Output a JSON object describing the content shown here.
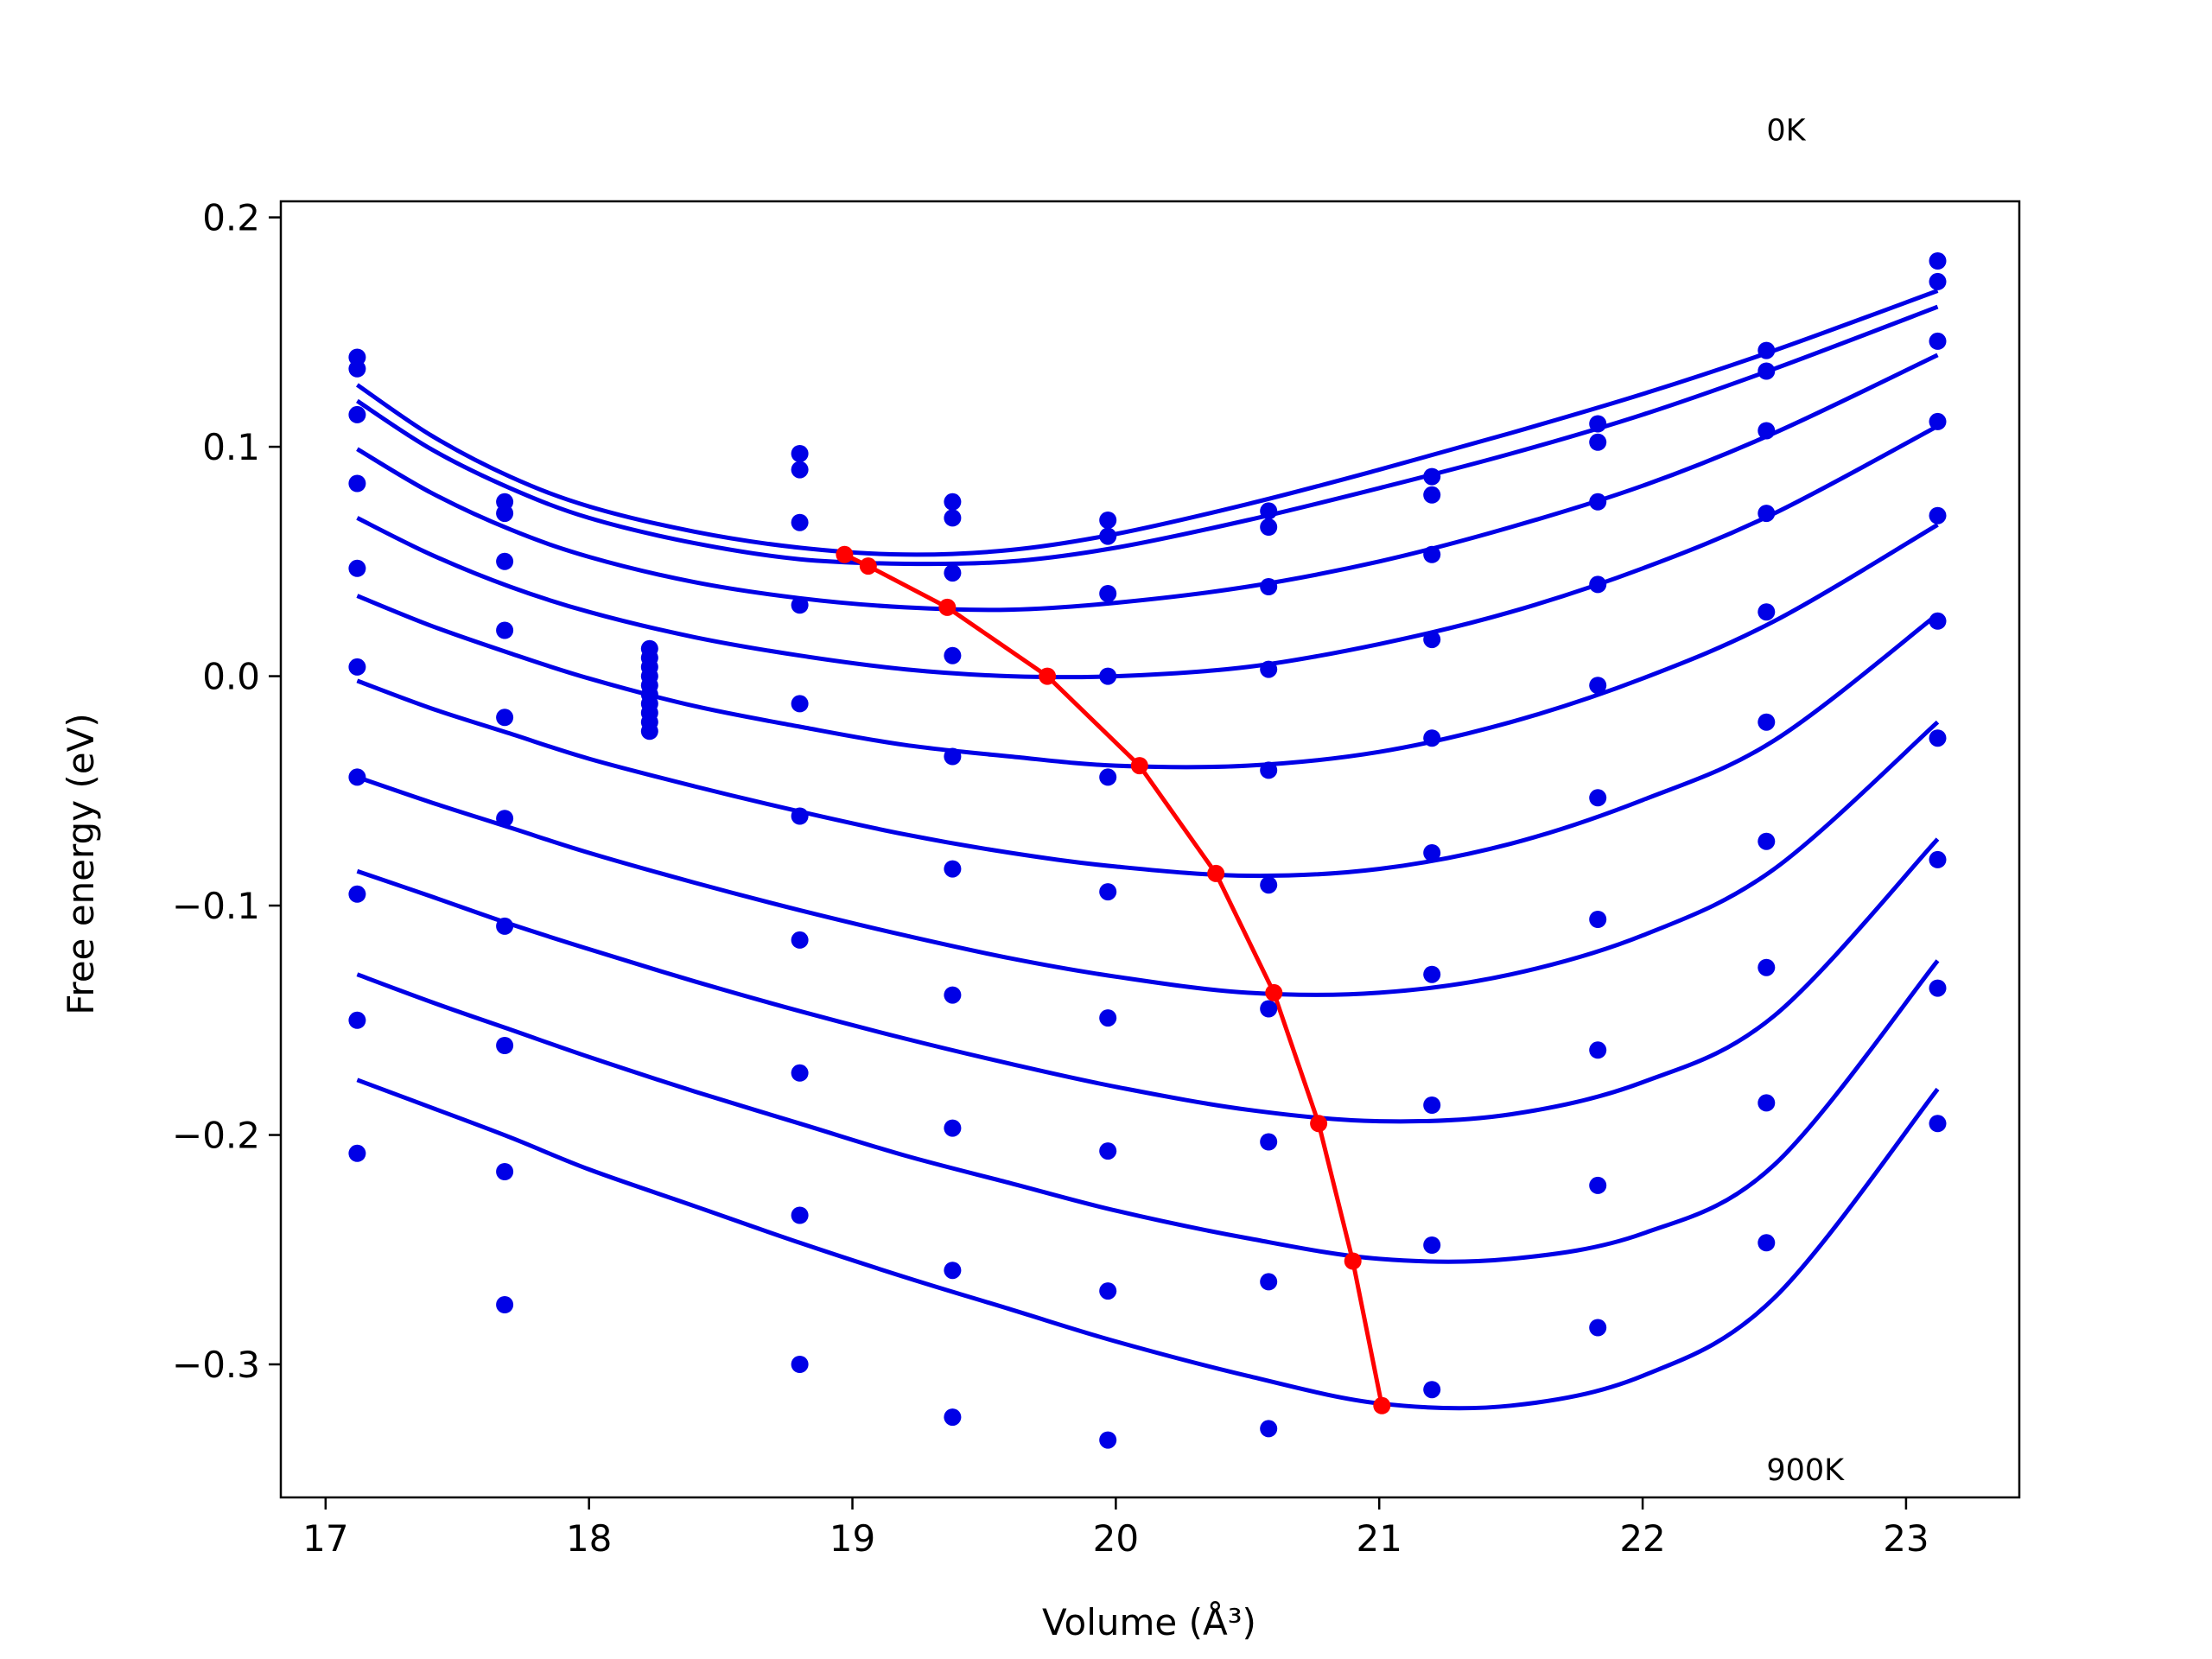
{
  "chart_data": {
    "type": "scatter",
    "xlabel": "Volume (Å³)",
    "ylabel": "Free energy (eV)",
    "xlim": [
      16.83,
      23.43
    ],
    "ylim": [
      -0.358,
      0.207
    ],
    "xticks": [
      17,
      18,
      19,
      20,
      21,
      22,
      23
    ],
    "yticks": [
      0.2,
      0.1,
      0.0,
      -0.1,
      -0.2,
      -0.3
    ],
    "ytick_labels": [
      "0.2",
      "0.1",
      "0.0",
      "−0.1",
      "−0.2",
      "−0.3"
    ],
    "grid": false,
    "colors": {
      "curves": "#0000e6",
      "points": "#0000e6",
      "minima": "#ff0000"
    },
    "annotations": [
      {
        "text": "0K",
        "x": 22.47,
        "y": 0.238
      },
      {
        "text": "900K",
        "x": 22.47,
        "y": -0.346
      }
    ],
    "x_volumes": [
      17.12,
      17.68,
      18.23,
      18.8,
      19.38,
      19.97,
      20.58,
      21.2,
      21.83,
      22.47,
      23.12
    ],
    "scatter_points": [
      [
        17.12,
        0.139
      ],
      [
        17.12,
        0.134
      ],
      [
        17.12,
        0.114
      ],
      [
        17.12,
        0.084
      ],
      [
        17.12,
        0.047
      ],
      [
        17.12,
        0.004
      ],
      [
        17.12,
        -0.044
      ],
      [
        17.12,
        -0.095
      ],
      [
        17.12,
        -0.15
      ],
      [
        17.12,
        -0.208
      ],
      [
        17.68,
        0.076
      ],
      [
        17.68,
        0.071
      ],
      [
        17.68,
        0.05
      ],
      [
        17.68,
        0.02
      ],
      [
        17.68,
        -0.018
      ],
      [
        17.68,
        -0.062
      ],
      [
        17.68,
        -0.109
      ],
      [
        17.68,
        -0.161
      ],
      [
        17.68,
        -0.216
      ],
      [
        17.68,
        -0.274
      ],
      [
        18.23,
        0.012
      ],
      [
        18.23,
        0.008
      ],
      [
        18.23,
        0.004
      ],
      [
        18.23,
        0.0
      ],
      [
        18.23,
        -0.004
      ],
      [
        18.23,
        -0.008
      ],
      [
        18.23,
        -0.012
      ],
      [
        18.23,
        -0.016
      ],
      [
        18.23,
        -0.02
      ],
      [
        18.23,
        -0.024
      ],
      [
        18.8,
        0.097
      ],
      [
        18.8,
        0.09
      ],
      [
        18.8,
        0.067
      ],
      [
        18.8,
        0.031
      ],
      [
        18.8,
        -0.012
      ],
      [
        18.8,
        -0.061
      ],
      [
        18.8,
        -0.115
      ],
      [
        18.8,
        -0.173
      ],
      [
        18.8,
        -0.235
      ],
      [
        18.8,
        -0.3
      ],
      [
        19.38,
        0.076
      ],
      [
        19.38,
        0.069
      ],
      [
        19.38,
        0.045
      ],
      [
        19.38,
        0.009
      ],
      [
        19.38,
        -0.035
      ],
      [
        19.38,
        -0.084
      ],
      [
        19.38,
        -0.139
      ],
      [
        19.38,
        -0.197
      ],
      [
        19.38,
        -0.259
      ],
      [
        19.38,
        -0.323
      ],
      [
        19.97,
        0.068
      ],
      [
        19.97,
        0.061
      ],
      [
        19.97,
        0.036
      ],
      [
        19.97,
        0.0
      ],
      [
        19.97,
        -0.044
      ],
      [
        19.97,
        -0.094
      ],
      [
        19.97,
        -0.149
      ],
      [
        19.97,
        -0.207
      ],
      [
        19.97,
        -0.268
      ],
      [
        19.97,
        -0.333
      ],
      [
        20.58,
        0.072
      ],
      [
        20.58,
        0.065
      ],
      [
        20.58,
        0.039
      ],
      [
        20.58,
        0.003
      ],
      [
        20.58,
        -0.041
      ],
      [
        20.58,
        -0.091
      ],
      [
        20.58,
        -0.145
      ],
      [
        20.58,
        -0.203
      ],
      [
        20.58,
        -0.264
      ],
      [
        20.58,
        -0.328
      ],
      [
        21.2,
        0.087
      ],
      [
        21.2,
        0.079
      ],
      [
        21.2,
        0.053
      ],
      [
        21.2,
        0.016
      ],
      [
        21.2,
        -0.027
      ],
      [
        21.2,
        -0.077
      ],
      [
        21.2,
        -0.13
      ],
      [
        21.2,
        -0.187
      ],
      [
        21.2,
        -0.248
      ],
      [
        21.2,
        -0.311
      ],
      [
        21.83,
        0.11
      ],
      [
        21.83,
        0.102
      ],
      [
        21.83,
        0.076
      ],
      [
        21.83,
        0.04
      ],
      [
        21.83,
        -0.004
      ],
      [
        21.83,
        -0.053
      ],
      [
        21.83,
        -0.106
      ],
      [
        21.83,
        -0.163
      ],
      [
        21.83,
        -0.222
      ],
      [
        21.83,
        -0.284
      ],
      [
        22.47,
        0.142
      ],
      [
        22.47,
        0.133
      ],
      [
        22.47,
        0.107
      ],
      [
        22.47,
        0.071
      ],
      [
        22.47,
        0.028
      ],
      [
        22.47,
        -0.02
      ],
      [
        22.47,
        -0.072
      ],
      [
        22.47,
        -0.127
      ],
      [
        22.47,
        -0.186
      ],
      [
        22.47,
        -0.247
      ],
      [
        23.12,
        0.181
      ],
      [
        23.12,
        0.172
      ],
      [
        23.12,
        0.146
      ],
      [
        23.12,
        0.111
      ],
      [
        23.12,
        0.07
      ],
      [
        23.12,
        0.024
      ],
      [
        23.12,
        -0.027
      ],
      [
        23.12,
        -0.08
      ],
      [
        23.12,
        -0.136
      ],
      [
        23.12,
        -0.195
      ]
    ],
    "curves": [
      {
        "x": [
          17.12,
          17.4,
          17.7,
          18.0,
          18.4,
          18.8,
          19.2,
          19.6,
          20.0,
          20.5,
          21.0,
          21.5,
          22.0,
          22.5,
          23.12
        ],
        "y": [
          0.127,
          0.105,
          0.087,
          0.074,
          0.063,
          0.056,
          0.053,
          0.055,
          0.062,
          0.075,
          0.09,
          0.106,
          0.123,
          0.142,
          0.168
        ]
      },
      {
        "x": [
          17.12,
          17.4,
          17.7,
          18.0,
          18.4,
          18.8,
          19.2,
          19.6,
          20.0,
          20.5,
          21.0,
          21.5,
          22.0,
          22.5,
          23.12
        ],
        "y": [
          0.12,
          0.099,
          0.082,
          0.069,
          0.058,
          0.051,
          0.049,
          0.05,
          0.056,
          0.068,
          0.082,
          0.097,
          0.114,
          0.134,
          0.161
        ]
      },
      {
        "x": [
          17.12,
          17.4,
          17.7,
          18.0,
          18.4,
          18.8,
          19.2,
          19.6,
          20.0,
          20.5,
          21.0,
          21.5,
          22.0,
          22.5,
          23.12
        ],
        "y": [
          0.099,
          0.08,
          0.064,
          0.052,
          0.041,
          0.034,
          0.03,
          0.029,
          0.032,
          0.039,
          0.05,
          0.065,
          0.083,
          0.106,
          0.14
        ]
      },
      {
        "x": [
          17.12,
          17.4,
          17.7,
          18.0,
          18.4,
          18.8,
          19.2,
          19.6,
          20.0,
          20.5,
          21.0,
          21.5,
          22.0,
          22.5,
          23.12
        ],
        "y": [
          0.069,
          0.053,
          0.039,
          0.028,
          0.017,
          0.009,
          0.003,
          0.0,
          0.0,
          0.004,
          0.014,
          0.028,
          0.047,
          0.071,
          0.109
        ]
      },
      {
        "x": [
          17.12,
          17.4,
          17.7,
          18.0,
          18.4,
          18.8,
          19.2,
          19.6,
          20.0,
          20.5,
          21.0,
          21.5,
          22.0,
          22.5,
          23.12
        ],
        "y": [
          0.035,
          0.022,
          0.01,
          -0.001,
          -0.013,
          -0.022,
          -0.03,
          -0.035,
          -0.039,
          -0.039,
          -0.033,
          -0.02,
          -0.001,
          0.024,
          0.066
        ]
      },
      {
        "x": [
          17.12,
          17.4,
          17.7,
          18.0,
          18.4,
          18.8,
          19.2,
          19.6,
          20.0,
          20.5,
          21.0,
          21.5,
          22.0,
          22.5,
          23.12
        ],
        "y": [
          -0.002,
          -0.014,
          -0.025,
          -0.036,
          -0.048,
          -0.059,
          -0.069,
          -0.077,
          -0.083,
          -0.087,
          -0.084,
          -0.073,
          -0.054,
          -0.028,
          0.027
        ]
      },
      {
        "x": [
          17.12,
          17.4,
          17.7,
          18.0,
          18.4,
          18.8,
          19.2,
          19.6,
          20.0,
          20.5,
          21.0,
          21.5,
          22.0,
          22.5,
          23.12
        ],
        "y": [
          -0.044,
          -0.055,
          -0.066,
          -0.077,
          -0.09,
          -0.102,
          -0.113,
          -0.123,
          -0.131,
          -0.138,
          -0.138,
          -0.13,
          -0.113,
          -0.084,
          -0.02
        ]
      },
      {
        "x": [
          17.12,
          17.4,
          17.7,
          18.0,
          18.4,
          18.8,
          19.2,
          19.6,
          20.0,
          20.5,
          21.0,
          21.5,
          22.0,
          22.5,
          23.12
        ],
        "y": [
          -0.085,
          -0.096,
          -0.108,
          -0.119,
          -0.133,
          -0.146,
          -0.158,
          -0.169,
          -0.179,
          -0.189,
          -0.194,
          -0.191,
          -0.177,
          -0.148,
          -0.071
        ]
      },
      {
        "x": [
          17.12,
          17.4,
          17.7,
          18.0,
          18.4,
          18.8,
          19.2,
          19.6,
          20.0,
          20.5,
          21.0,
          21.5,
          22.0,
          22.5,
          23.12
        ],
        "y": [
          -0.13,
          -0.142,
          -0.154,
          -0.166,
          -0.181,
          -0.195,
          -0.209,
          -0.221,
          -0.233,
          -0.245,
          -0.254,
          -0.254,
          -0.243,
          -0.213,
          -0.124
        ]
      },
      {
        "x": [
          17.12,
          17.4,
          17.7,
          18.0,
          18.4,
          18.8,
          19.2,
          19.6,
          20.0,
          20.5,
          21.0,
          21.5,
          22.0,
          22.5,
          23.12
        ],
        "y": [
          -0.176,
          -0.188,
          -0.201,
          -0.215,
          -0.231,
          -0.247,
          -0.262,
          -0.276,
          -0.29,
          -0.305,
          -0.317,
          -0.318,
          -0.305,
          -0.271,
          -0.18
        ]
      }
    ],
    "minima_line": {
      "x": [
        18.97,
        19.06,
        19.36,
        19.74,
        20.09,
        20.38,
        20.6,
        20.77,
        20.9,
        21.01
      ],
      "y": [
        0.053,
        0.048,
        0.03,
        0.0,
        -0.039,
        -0.086,
        -0.138,
        -0.195,
        -0.255,
        -0.318
      ]
    }
  }
}
